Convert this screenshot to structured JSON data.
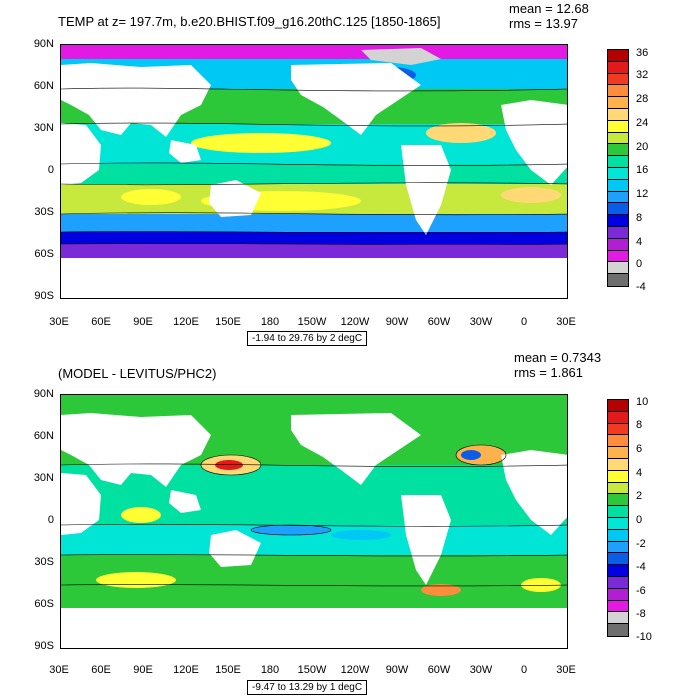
{
  "top": {
    "title": "TEMP at z= 197.7m, b.e20.BHIST.f09_g16.20thC.125 [1850-1865]",
    "mean": "mean = 12.68",
    "rms": "rms = 13.97",
    "lat_labels": [
      "90N",
      "60N",
      "30N",
      "0",
      "30S",
      "60S",
      "90S"
    ],
    "lon_labels": [
      "30E",
      "60E",
      "90E",
      "120E",
      "150E",
      "180",
      "150W",
      "120W",
      "90W",
      "60W",
      "30W",
      "0",
      "30E"
    ],
    "range": "-1.94 to 29.76 by 2 degC",
    "colorbar_labels": [
      "36",
      "32",
      "28",
      "24",
      "20",
      "16",
      "12",
      "8",
      "4",
      "0",
      "-4"
    ],
    "colorbar_colors": [
      "#b30000",
      "#e31a1c",
      "#f03b20",
      "#fd8d3c",
      "#feb24c",
      "#fed976",
      "#ffff33",
      "#c7e93e",
      "#2dc83a",
      "#00e0a0",
      "#00e5d5",
      "#00c8f5",
      "#1ea0ff",
      "#0a5ee6",
      "#0000e0",
      "#7a2ad6",
      "#b020d2",
      "#e31ae3",
      "#d3d3d3",
      "#6e6e6e"
    ]
  },
  "bottom": {
    "title": "(MODEL - LEVITUS/PHC2)",
    "mean": "mean = 0.7343",
    "rms": "rms = 1.861",
    "lat_labels": [
      "90N",
      "60N",
      "30N",
      "0",
      "30S",
      "60S",
      "90S"
    ],
    "lon_labels": [
      "30E",
      "60E",
      "90E",
      "120E",
      "150E",
      "180",
      "150W",
      "120W",
      "90W",
      "60W",
      "30W",
      "0",
      "30E"
    ],
    "range": "-9.47 to 13.29 by 1 degC",
    "colorbar_labels": [
      "10",
      "8",
      "6",
      "4",
      "2",
      "0",
      "-2",
      "-4",
      "-6",
      "-8",
      "-10"
    ],
    "colorbar_colors": [
      "#b30000",
      "#e31a1c",
      "#f03b20",
      "#fd8d3c",
      "#feb24c",
      "#fed976",
      "#ffff33",
      "#c7e93e",
      "#2dc83a",
      "#00e0a0",
      "#00e5d5",
      "#00c8f5",
      "#1ea0ff",
      "#0a5ee6",
      "#0000e0",
      "#7a2ad6",
      "#b020d2",
      "#e31ae3",
      "#d3d3d3",
      "#6e6e6e"
    ]
  }
}
